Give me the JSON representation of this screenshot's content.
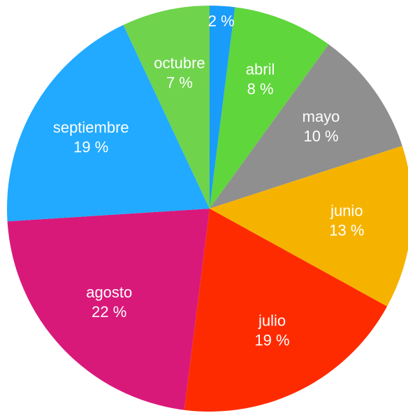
{
  "chart_data": {
    "type": "pie",
    "categories": [
      null,
      "abril",
      "mayo",
      "junio",
      "julio",
      "agosto",
      "septiembre",
      "octubre"
    ],
    "values": [
      2,
      8,
      10,
      13,
      19,
      22,
      19,
      7
    ],
    "value_labels": [
      "2 %",
      "8 %",
      "10 %",
      "13 %",
      "19 %",
      "22 %",
      "19 %",
      "7 %"
    ],
    "colors": [
      "#1a9cfb",
      "#5fd63b",
      "#8f8f8f",
      "#f5b300",
      "#ff2b00",
      "#d8197a",
      "#21aaff",
      "#6fd34c"
    ]
  }
}
